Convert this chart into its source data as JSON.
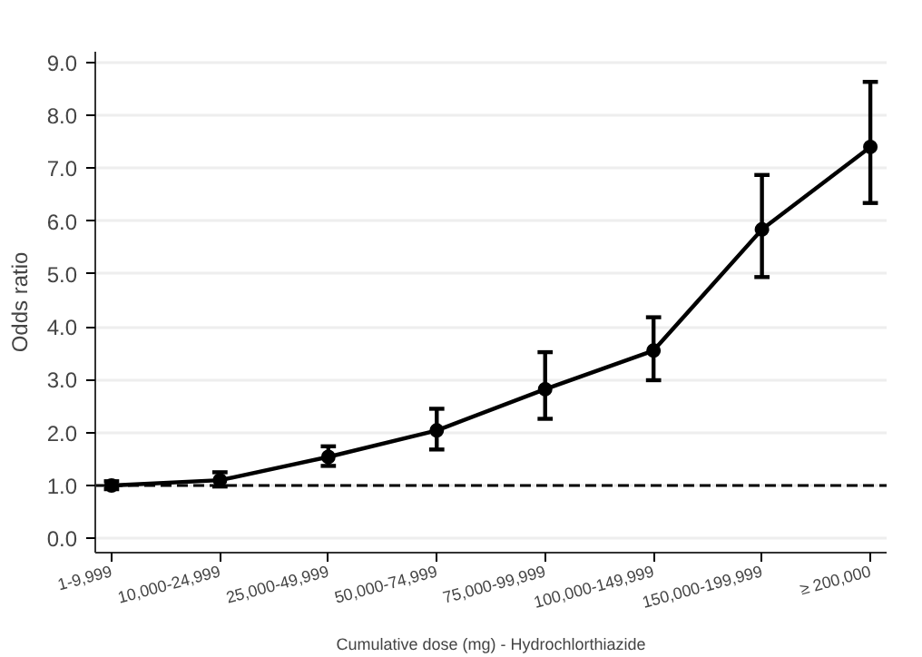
{
  "chart_data": {
    "type": "line",
    "xlabel": "Cumulative dose (mg) - Hydrochlorthiazide",
    "ylabel": "Odds ratio",
    "categories": [
      "1-9,999",
      "10,000-24,999",
      "25,000-49,999",
      "50,000-74,999",
      "75,000-99,999",
      "100,000-149,999",
      "150,000-199,999",
      "≥ 200,000"
    ],
    "series": [
      {
        "color": "#000000",
        "values": [
          1.0,
          1.1,
          1.54,
          2.04,
          2.82,
          3.55,
          5.84,
          7.4
        ],
        "errors": [
          [
            0.93,
            1.08
          ],
          [
            0.98,
            1.25
          ],
          [
            1.37,
            1.74
          ],
          [
            1.68,
            2.45
          ],
          [
            2.26,
            3.52
          ],
          [
            2.99,
            4.18
          ],
          [
            4.94,
            6.87
          ],
          [
            6.34,
            8.63
          ]
        ]
      }
    ],
    "ylim": [
      -0.27,
      9.2
    ],
    "yticks": [
      {
        "value": 0,
        "label": "0.0"
      },
      {
        "value": 1,
        "label": "1.0"
      },
      {
        "value": 2,
        "label": "2.0"
      },
      {
        "value": 3,
        "label": "3.0"
      },
      {
        "value": 4,
        "label": "4.0"
      },
      {
        "value": 5,
        "label": "5.0"
      },
      {
        "value": 6,
        "label": "6.0"
      },
      {
        "value": 7,
        "label": "7.0"
      },
      {
        "value": 8,
        "label": "8.0"
      },
      {
        "value": 9,
        "label": "9.0"
      }
    ],
    "grid": "y",
    "marker": "circle",
    "line_style": "solid",
    "ref_lines": [
      {
        "axis": "y",
        "value": 1,
        "line_style": "dashed",
        "color": "#000000"
      }
    ]
  }
}
